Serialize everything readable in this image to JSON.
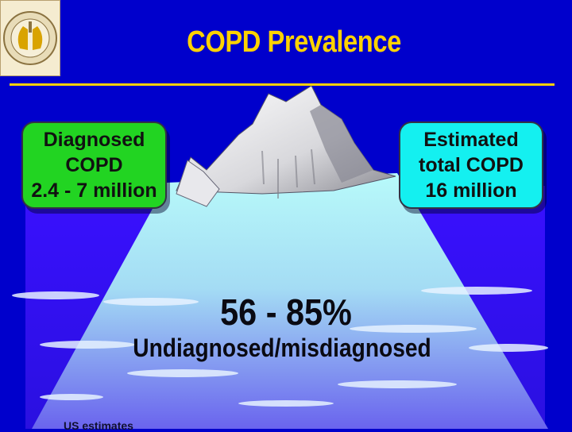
{
  "slide": {
    "title": "COPD Prevalence",
    "callouts": {
      "diagnosed": {
        "line1": "Diagnosed",
        "line2": "COPD",
        "line3": "2.4 - 7 million"
      },
      "estimated": {
        "line1": "Estimated",
        "line2": "total COPD",
        "line3": "16 million"
      }
    },
    "percentage": "56 - 85%",
    "undiagnosed_label": "Undiagnosed/misdiagnosed",
    "footnote_fragment": "US estimates"
  },
  "colors": {
    "background": "#0000cc",
    "title": "#ffd200",
    "diagnosed_box": "#22d422",
    "estimated_box": "#14f0f0",
    "iceberg_top": "#a8f6f6",
    "iceberg_bottom": "#6f6ff0"
  },
  "icons": {
    "logo": "lung-emblem-logo"
  }
}
